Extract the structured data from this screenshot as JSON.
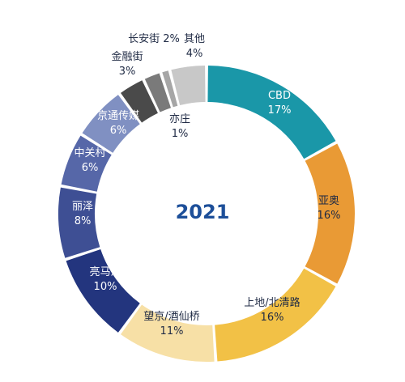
{
  "chart_data": {
    "type": "pie",
    "title": "2021",
    "slices": [
      {
        "name": "CBD",
        "value_label": "17%",
        "value": 17,
        "color": "#1a97a8",
        "text_color": "#ffffff"
      },
      {
        "name": "亚奥",
        "value_label": "16%",
        "value": 16,
        "color": "#e99a35",
        "text_color": "#1f2a44"
      },
      {
        "name": "上地/北清路",
        "value_label": "16%",
        "value": 16,
        "color": "#f2c146",
        "text_color": "#1f2a44"
      },
      {
        "name": "望京/酒仙桥",
        "value_label": "11%",
        "value": 11,
        "color": "#f7e0a6",
        "text_color": "#1f2a44"
      },
      {
        "name": "亮马河",
        "value_label": "10%",
        "value": 10,
        "color": "#23357e",
        "text_color": "#ffffff"
      },
      {
        "name": "丽泽",
        "value_label": "8%",
        "value": 8,
        "color": "#3e4f94",
        "text_color": "#ffffff"
      },
      {
        "name": "中关村",
        "value_label": "6%",
        "value": 6,
        "color": "#5667a8",
        "text_color": "#ffffff"
      },
      {
        "name": "京通传媒",
        "value_label": "6%",
        "value": 6,
        "color": "#8090c2",
        "text_color": "#ffffff"
      },
      {
        "name": "金融街",
        "value_label": "3%",
        "value": 3,
        "color": "#4a4a4a",
        "text_color": "#1f2a44"
      },
      {
        "name": "长安街",
        "value_label": "2%",
        "value": 2,
        "color": "#7a7a7a",
        "text_color": "#1f2a44"
      },
      {
        "name": "亦庄",
        "value_label": "1%",
        "value": 1,
        "color": "#a6a6a6",
        "text_color": "#1f2a44"
      },
      {
        "name": "其他",
        "value_label": "4%",
        "value": 4,
        "color": "#c8c8c8",
        "text_color": "#1f2a44"
      }
    ]
  }
}
